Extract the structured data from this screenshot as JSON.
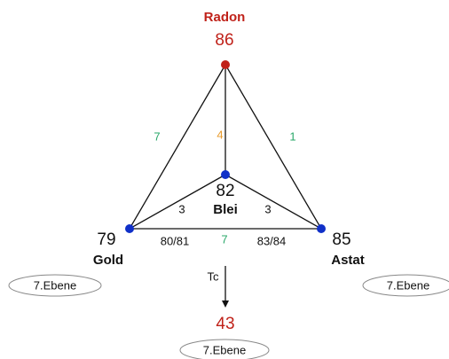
{
  "nodes": [
    {
      "name": "Radon",
      "number": 86
    },
    {
      "name": "Blei",
      "number": 82
    },
    {
      "name": "Gold",
      "number": 79
    },
    {
      "name": "Astat",
      "number": 85
    }
  ],
  "edges": [
    {
      "label": 7
    },
    {
      "label": 4
    },
    {
      "label": 1
    },
    {
      "label": 3
    },
    {
      "label": 3
    },
    {
      "label": "80/81"
    },
    {
      "label": 7
    },
    {
      "label": "83/84"
    }
  ],
  "decay": {
    "label": "Tc",
    "product": 43
  },
  "levels": [
    "7.Ebene",
    "7.Ebene",
    "7.Ebene"
  ]
}
